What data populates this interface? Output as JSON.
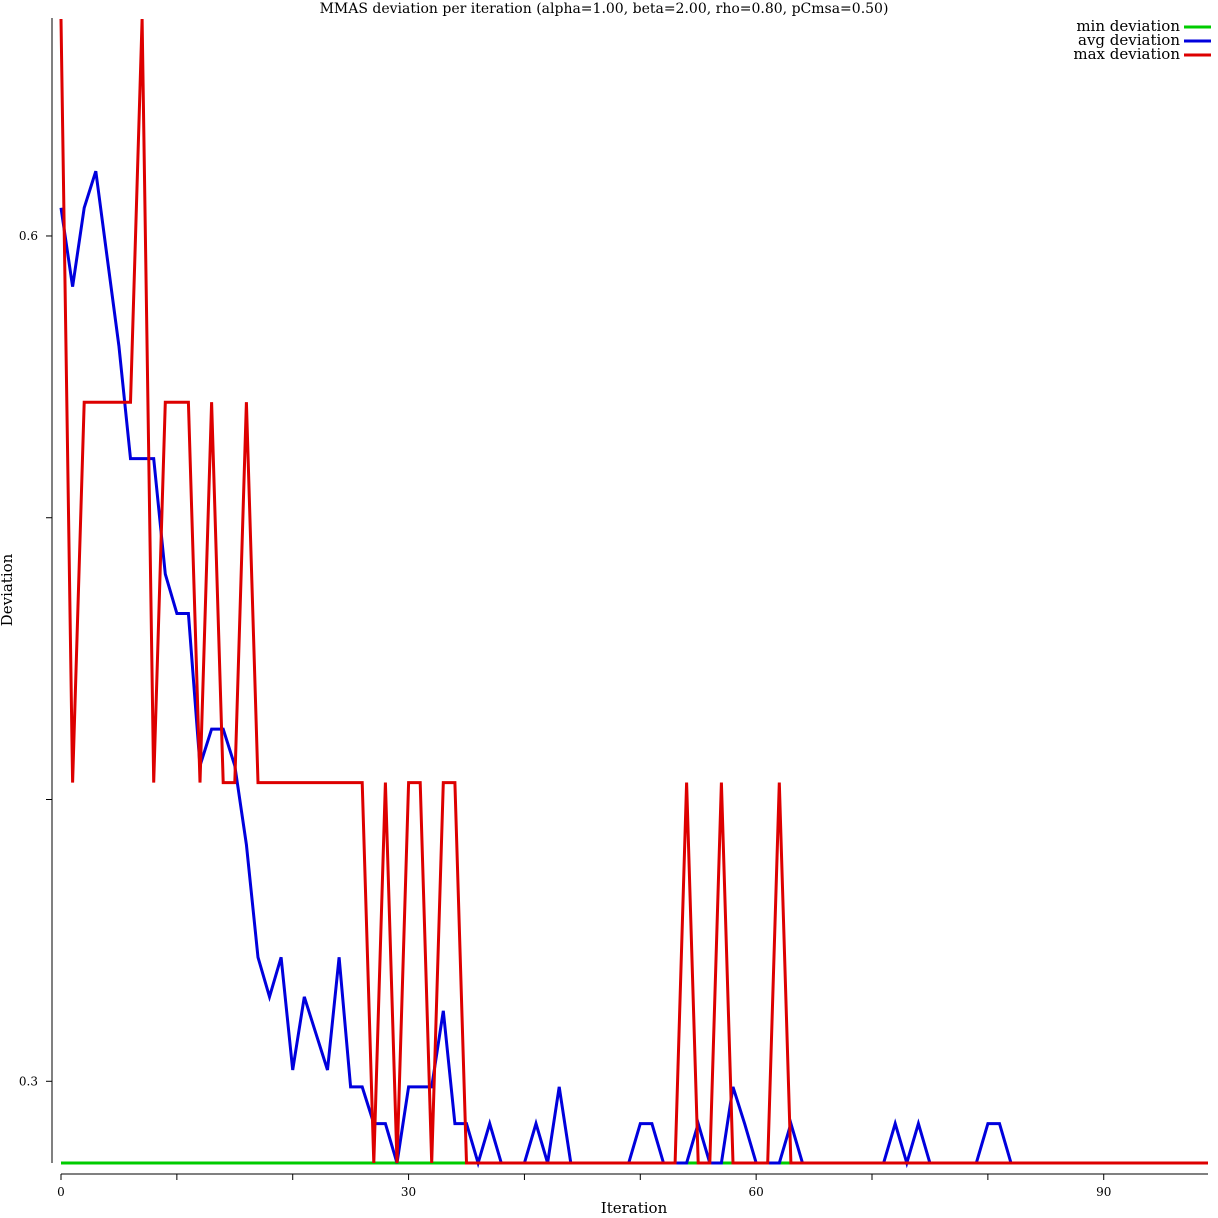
{
  "chart_data": {
    "type": "line",
    "title": "MMAS deviation per iteration (alpha=1.00, beta=2.00, rho=0.80, pCmsa=0.50)",
    "xlabel": "Iteration",
    "ylabel": "Deviation",
    "xlim": [
      0,
      99
    ],
    "ylim": [
      0.271,
      0.677
    ],
    "x_ticks": [
      0,
      10,
      20,
      30,
      40,
      50,
      60,
      70,
      80,
      90
    ],
    "y_ticks": [
      0.3,
      0.4,
      0.5,
      0.6
    ],
    "x_tick_labels": [
      {
        "value": 0,
        "label": "0"
      },
      {
        "value": 30,
        "label": "30"
      },
      {
        "value": 60,
        "label": "60"
      },
      {
        "value": 90,
        "label": "90"
      }
    ],
    "y_tick_labels": [
      {
        "value": 0.3,
        "label": "0.3"
      },
      {
        "value": 0.6,
        "label": "0.6"
      }
    ],
    "grid": false,
    "legend_position": "top-right",
    "x": [
      0,
      1,
      2,
      3,
      4,
      5,
      6,
      7,
      8,
      9,
      10,
      11,
      12,
      13,
      14,
      15,
      16,
      17,
      18,
      19,
      20,
      21,
      22,
      23,
      24,
      25,
      26,
      27,
      28,
      29,
      30,
      31,
      32,
      33,
      34,
      35,
      36,
      37,
      38,
      39,
      40,
      41,
      42,
      43,
      44,
      45,
      46,
      47,
      48,
      49,
      50,
      51,
      52,
      53,
      54,
      55,
      56,
      57,
      58,
      59,
      60,
      61,
      62,
      63,
      64,
      65,
      66,
      67,
      68,
      69,
      70,
      71,
      72,
      73,
      74,
      75,
      76,
      77,
      78,
      79,
      80,
      81,
      82,
      83,
      84,
      85,
      86,
      87,
      88,
      89,
      90,
      91,
      92,
      93,
      94,
      95,
      96,
      97,
      98,
      99
    ],
    "series": [
      {
        "name": "min deviation",
        "color": "#00cc00",
        "values": [
          0.271,
          0.271,
          0.271,
          0.271,
          0.271,
          0.271,
          0.271,
          0.271,
          0.271,
          0.271,
          0.271,
          0.271,
          0.271,
          0.271,
          0.271,
          0.271,
          0.271,
          0.271,
          0.271,
          0.271,
          0.271,
          0.271,
          0.271,
          0.271,
          0.271,
          0.271,
          0.271,
          0.271,
          0.271,
          0.271,
          0.271,
          0.271,
          0.271,
          0.271,
          0.271,
          0.271,
          0.271,
          0.271,
          0.271,
          0.271,
          0.271,
          0.271,
          0.271,
          0.271,
          0.271,
          0.271,
          0.271,
          0.271,
          0.271,
          0.271,
          0.271,
          0.271,
          0.271,
          0.271,
          0.271,
          0.271,
          0.271,
          0.271,
          0.271,
          0.271,
          0.271,
          0.271,
          0.271,
          0.271,
          0.271,
          0.271,
          0.271,
          0.271,
          0.271,
          0.271,
          0.271,
          0.271,
          0.271,
          0.271,
          0.271,
          0.271,
          0.271,
          0.271,
          0.271,
          0.271,
          0.271,
          0.271,
          0.271,
          0.271,
          0.271,
          0.271,
          0.271,
          0.271,
          0.271,
          0.271,
          0.271,
          0.271,
          0.271,
          0.271,
          0.271,
          0.271,
          0.271,
          0.271,
          0.271,
          0.271
        ]
      },
      {
        "name": "avg deviation",
        "color": "#0000dd",
        "values": [
          0.61,
          0.582,
          0.61,
          0.623,
          0.592,
          0.561,
          0.521,
          0.521,
          0.521,
          0.48,
          0.466,
          0.466,
          0.412,
          0.425,
          0.425,
          0.412,
          0.384,
          0.344,
          0.33,
          0.344,
          0.304,
          0.33,
          0.317,
          0.304,
          0.344,
          0.298,
          0.298,
          0.285,
          0.285,
          0.271,
          0.298,
          0.298,
          0.298,
          0.325,
          0.285,
          0.285,
          0.271,
          0.285,
          0.271,
          0.271,
          0.271,
          0.285,
          0.271,
          0.298,
          0.271,
          0.271,
          0.271,
          0.271,
          0.271,
          0.271,
          0.285,
          0.285,
          0.271,
          0.271,
          0.271,
          0.285,
          0.271,
          0.271,
          0.298,
          0.285,
          0.271,
          0.271,
          0.271,
          0.285,
          0.271,
          0.271,
          0.271,
          0.271,
          0.271,
          0.271,
          0.271,
          0.271,
          0.285,
          0.271,
          0.285,
          0.271,
          0.271,
          0.271,
          0.271,
          0.271,
          0.285,
          0.285,
          0.271,
          0.271,
          0.271,
          0.271,
          0.271,
          0.271,
          0.271,
          0.271,
          0.271,
          0.271,
          0.271,
          0.271,
          0.271,
          0.271,
          0.271,
          0.271,
          0.271,
          0.271
        ]
      },
      {
        "name": "max deviation",
        "color": "#dd0000",
        "values": [
          0.677,
          0.406,
          0.541,
          0.541,
          0.541,
          0.541,
          0.541,
          0.677,
          0.406,
          0.541,
          0.541,
          0.541,
          0.406,
          0.541,
          0.406,
          0.406,
          0.541,
          0.406,
          0.406,
          0.406,
          0.406,
          0.406,
          0.406,
          0.406,
          0.406,
          0.406,
          0.406,
          0.271,
          0.406,
          0.271,
          0.406,
          0.406,
          0.271,
          0.406,
          0.406,
          0.271,
          0.271,
          0.271,
          0.271,
          0.271,
          0.271,
          0.271,
          0.271,
          0.271,
          0.271,
          0.271,
          0.271,
          0.271,
          0.271,
          0.271,
          0.271,
          0.271,
          0.271,
          0.271,
          0.406,
          0.271,
          0.271,
          0.406,
          0.271,
          0.271,
          0.271,
          0.271,
          0.406,
          0.271,
          0.271,
          0.271,
          0.271,
          0.271,
          0.271,
          0.271,
          0.271,
          0.271,
          0.271,
          0.271,
          0.271,
          0.271,
          0.271,
          0.271,
          0.271,
          0.271,
          0.271,
          0.271,
          0.271,
          0.271,
          0.271,
          0.271,
          0.271,
          0.271,
          0.271,
          0.271,
          0.271,
          0.271,
          0.271,
          0.271,
          0.271,
          0.271,
          0.271,
          0.271,
          0.271,
          0.271
        ]
      }
    ]
  }
}
